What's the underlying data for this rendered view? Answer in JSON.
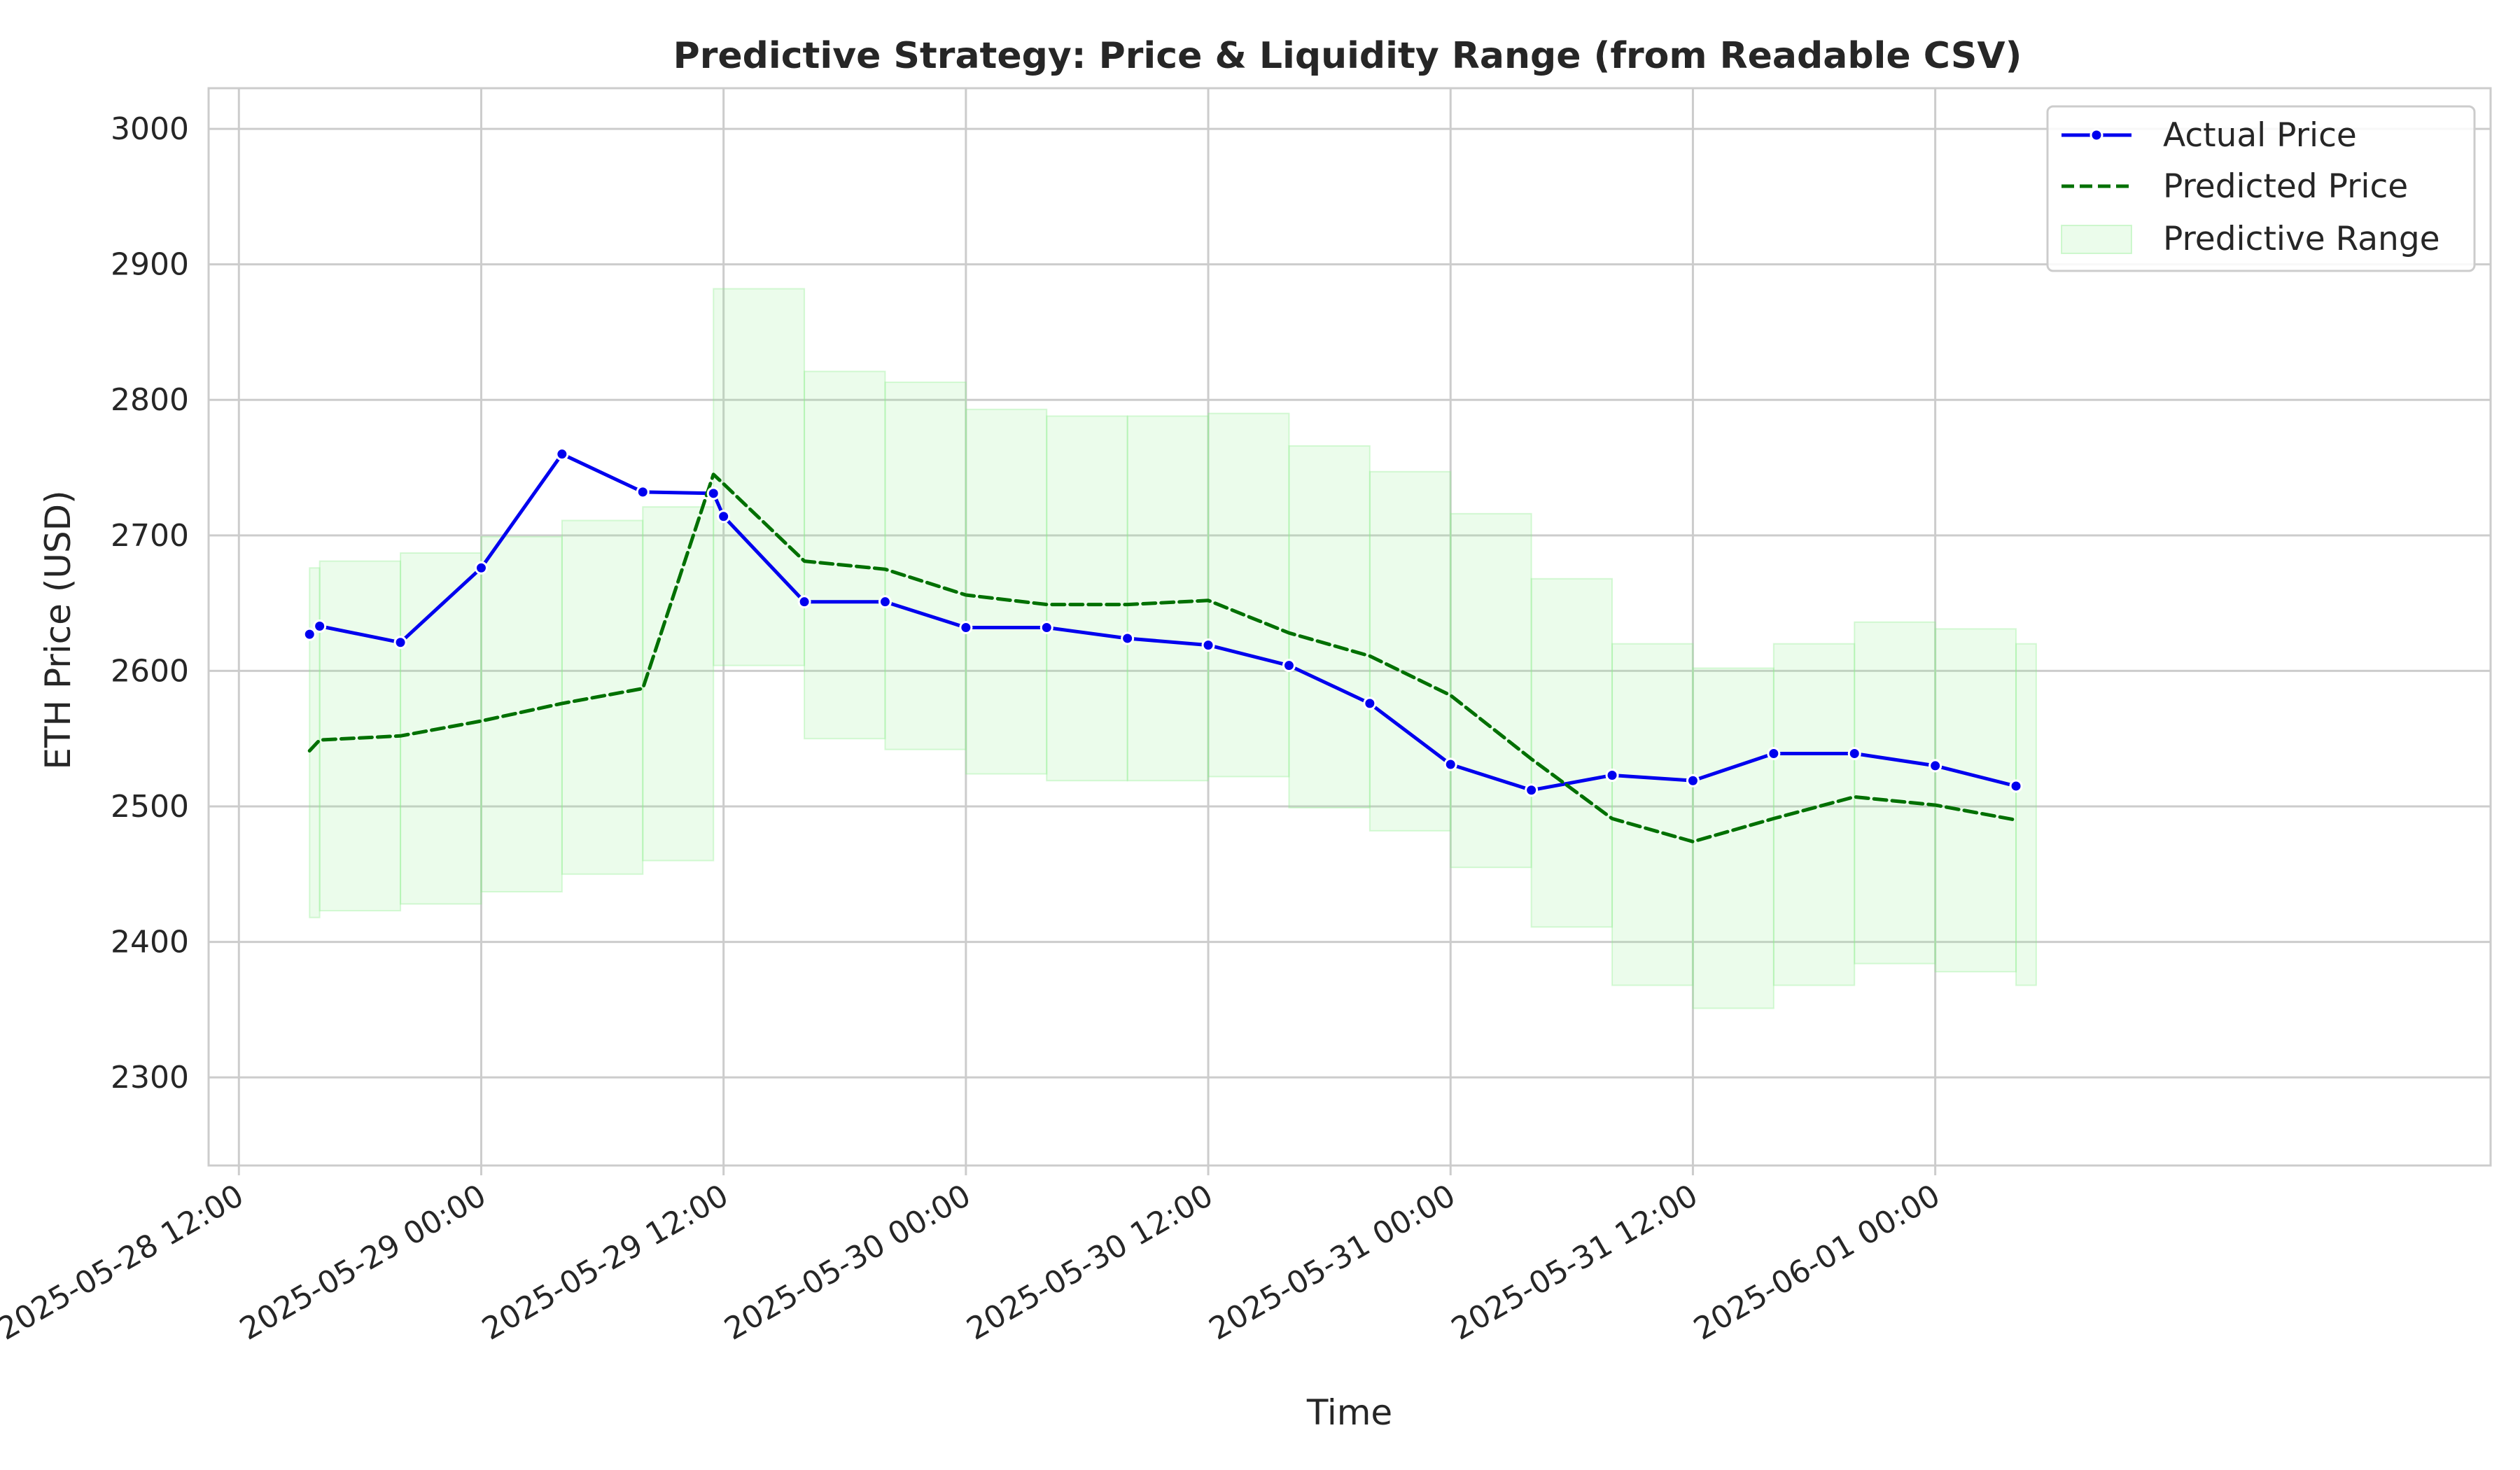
{
  "chart_data": {
    "type": "line",
    "title": "Predictive Strategy: Price & Liquidity Range (from Readable CSV)",
    "xlabel": "Time",
    "ylabel": "ETH Price (USD)",
    "ylim": [
      2235,
      3030
    ],
    "yticks": [
      2300,
      2400,
      2500,
      2600,
      2700,
      2800,
      2900,
      3000
    ],
    "xlim": [
      "2025-05-28 10:30",
      "2025-06-02 03:30"
    ],
    "xticks": [
      "2025-05-28 12:00",
      "2025-05-29 00:00",
      "2025-05-29 12:00",
      "2025-05-30 00:00",
      "2025-05-30 12:00",
      "2025-05-31 00:00",
      "2025-05-31 12:00",
      "2025-06-01 00:00"
    ],
    "grid": true,
    "legend_position": "top-right",
    "series": [
      {
        "name": "Actual Price",
        "color": "#0000ee",
        "style": "solid-with-markers",
        "points": [
          {
            "x": "2025-05-28 15:30",
            "y": 2627
          },
          {
            "x": "2025-05-28 16:00",
            "y": 2633
          },
          {
            "x": "2025-05-28 20:00",
            "y": 2621
          },
          {
            "x": "2025-05-29 00:00",
            "y": 2676
          },
          {
            "x": "2025-05-29 04:00",
            "y": 2760
          },
          {
            "x": "2025-05-29 08:00",
            "y": 2732
          },
          {
            "x": "2025-05-29 11:30",
            "y": 2731
          },
          {
            "x": "2025-05-29 12:00",
            "y": 2714
          },
          {
            "x": "2025-05-29 16:00",
            "y": 2651
          },
          {
            "x": "2025-05-29 20:00",
            "y": 2651
          },
          {
            "x": "2025-05-30 00:00",
            "y": 2632
          },
          {
            "x": "2025-05-30 04:00",
            "y": 2632
          },
          {
            "x": "2025-05-30 08:00",
            "y": 2624
          },
          {
            "x": "2025-05-30 12:00",
            "y": 2619
          },
          {
            "x": "2025-05-30 16:00",
            "y": 2604
          },
          {
            "x": "2025-05-30 20:00",
            "y": 2576
          },
          {
            "x": "2025-05-31 00:00",
            "y": 2531
          },
          {
            "x": "2025-05-31 04:00",
            "y": 2512
          },
          {
            "x": "2025-05-31 08:00",
            "y": 2523
          },
          {
            "x": "2025-05-31 12:00",
            "y": 2519
          },
          {
            "x": "2025-05-31 16:00",
            "y": 2539
          },
          {
            "x": "2025-05-31 20:00",
            "y": 2539
          },
          {
            "x": "2025-06-01 00:00",
            "y": 2530
          },
          {
            "x": "2025-06-01 04:00",
            "y": 2515
          }
        ]
      },
      {
        "name": "Predicted Price",
        "color": "#007000",
        "style": "dashed",
        "points": [
          {
            "x": "2025-05-28 15:30",
            "y": 2541
          },
          {
            "x": "2025-05-28 16:00",
            "y": 2549
          },
          {
            "x": "2025-05-28 20:00",
            "y": 2552
          },
          {
            "x": "2025-05-29 00:00",
            "y": 2563
          },
          {
            "x": "2025-05-29 04:00",
            "y": 2576
          },
          {
            "x": "2025-05-29 08:00",
            "y": 2587
          },
          {
            "x": "2025-05-29 11:30",
            "y": 2745
          },
          {
            "x": "2025-05-29 12:00",
            "y": 2738
          },
          {
            "x": "2025-05-29 16:00",
            "y": 2681
          },
          {
            "x": "2025-05-29 20:00",
            "y": 2675
          },
          {
            "x": "2025-05-30 00:00",
            "y": 2656
          },
          {
            "x": "2025-05-30 04:00",
            "y": 2649
          },
          {
            "x": "2025-05-30 08:00",
            "y": 2649
          },
          {
            "x": "2025-05-30 12:00",
            "y": 2652
          },
          {
            "x": "2025-05-30 16:00",
            "y": 2628
          },
          {
            "x": "2025-05-30 20:00",
            "y": 2611
          },
          {
            "x": "2025-05-31 00:00",
            "y": 2582
          },
          {
            "x": "2025-05-31 04:00",
            "y": 2535
          },
          {
            "x": "2025-05-31 08:00",
            "y": 2491
          },
          {
            "x": "2025-05-31 12:00",
            "y": 2474
          },
          {
            "x": "2025-05-31 16:00",
            "y": 2491
          },
          {
            "x": "2025-05-31 20:00",
            "y": 2507
          },
          {
            "x": "2025-06-01 00:00",
            "y": 2501
          },
          {
            "x": "2025-06-01 04:00",
            "y": 2490
          }
        ]
      }
    ],
    "range": {
      "name": "Predictive Range",
      "color": "#90ee90",
      "opacity": 0.18,
      "steps": [
        {
          "start": "2025-05-28 15:30",
          "end": "2025-05-28 16:00",
          "low": 2418,
          "high": 2676
        },
        {
          "start": "2025-05-28 16:00",
          "end": "2025-05-28 20:00",
          "low": 2423,
          "high": 2681
        },
        {
          "start": "2025-05-28 20:00",
          "end": "2025-05-29 00:00",
          "low": 2428,
          "high": 2687
        },
        {
          "start": "2025-05-29 00:00",
          "end": "2025-05-29 04:00",
          "low": 2437,
          "high": 2699
        },
        {
          "start": "2025-05-29 04:00",
          "end": "2025-05-29 08:00",
          "low": 2450,
          "high": 2711
        },
        {
          "start": "2025-05-29 08:00",
          "end": "2025-05-29 11:30",
          "low": 2460,
          "high": 2721
        },
        {
          "start": "2025-05-29 11:30",
          "end": "2025-05-29 16:00",
          "low": 2604,
          "high": 2882
        },
        {
          "start": "2025-05-29 16:00",
          "end": "2025-05-29 20:00",
          "low": 2550,
          "high": 2821
        },
        {
          "start": "2025-05-29 20:00",
          "end": "2025-05-30 00:00",
          "low": 2542,
          "high": 2813
        },
        {
          "start": "2025-05-30 00:00",
          "end": "2025-05-30 04:00",
          "low": 2524,
          "high": 2793
        },
        {
          "start": "2025-05-30 04:00",
          "end": "2025-05-30 08:00",
          "low": 2519,
          "high": 2788
        },
        {
          "start": "2025-05-30 08:00",
          "end": "2025-05-30 12:00",
          "low": 2519,
          "high": 2788
        },
        {
          "start": "2025-05-30 12:00",
          "end": "2025-05-30 16:00",
          "low": 2522,
          "high": 2790
        },
        {
          "start": "2025-05-30 16:00",
          "end": "2025-05-30 20:00",
          "low": 2499,
          "high": 2766
        },
        {
          "start": "2025-05-30 20:00",
          "end": "2025-05-31 00:00",
          "low": 2482,
          "high": 2747
        },
        {
          "start": "2025-05-31 00:00",
          "end": "2025-05-31 04:00",
          "low": 2455,
          "high": 2716
        },
        {
          "start": "2025-05-31 04:00",
          "end": "2025-05-31 08:00",
          "low": 2411,
          "high": 2668
        },
        {
          "start": "2025-05-31 08:00",
          "end": "2025-05-31 12:00",
          "low": 2368,
          "high": 2620
        },
        {
          "start": "2025-05-31 12:00",
          "end": "2025-05-31 16:00",
          "low": 2351,
          "high": 2602
        },
        {
          "start": "2025-05-31 16:00",
          "end": "2025-05-31 20:00",
          "low": 2368,
          "high": 2620
        },
        {
          "start": "2025-05-31 20:00",
          "end": "2025-06-01 00:00",
          "low": 2384,
          "high": 2636
        },
        {
          "start": "2025-06-01 00:00",
          "end": "2025-06-01 04:00",
          "low": 2378,
          "high": 2631
        },
        {
          "start": "2025-06-01 04:00",
          "end": "2025-06-01 05:00",
          "low": 2368,
          "high": 2620
        }
      ]
    },
    "legend": [
      "Actual Price",
      "Predicted Price",
      "Predictive Range"
    ]
  }
}
